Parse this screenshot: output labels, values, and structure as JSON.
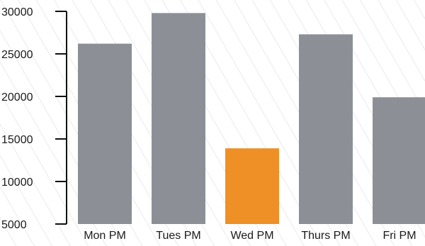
{
  "chart_data": {
    "type": "bar",
    "categories": [
      "Mon PM",
      "Tues PM",
      "Wed PM",
      "Thurs PM",
      "Fri PM"
    ],
    "values": [
      26200,
      29800,
      13900,
      27300,
      19900
    ],
    "highlight_index": 2,
    "ylim": [
      5000,
      30000
    ],
    "yticks": [
      5000,
      10000,
      15000,
      20000,
      25000,
      30000
    ],
    "colors": {
      "bar": "#8c9096",
      "highlight": "#ee9026",
      "axis": "#111111",
      "stripe": "#e4e4e4"
    },
    "grid": false,
    "title": "",
    "xlabel": "",
    "ylabel": ""
  }
}
